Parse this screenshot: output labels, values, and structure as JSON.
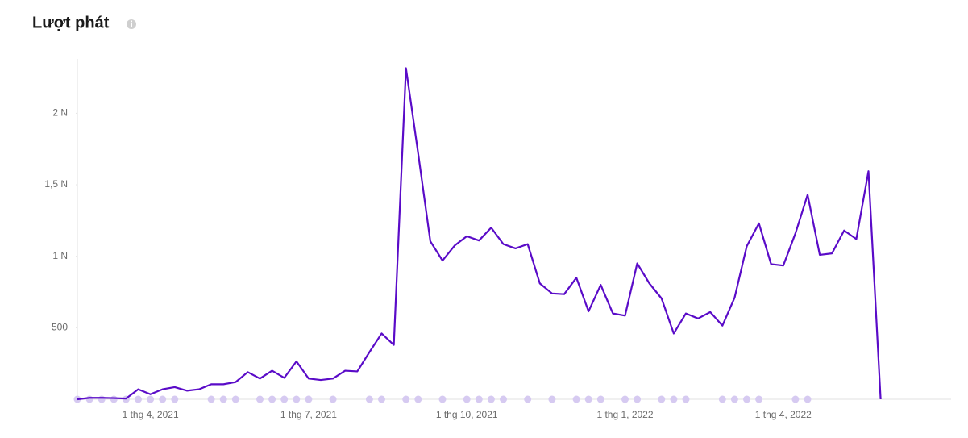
{
  "chart_data": {
    "type": "line",
    "title": "Lượt phát",
    "categories": [
      null,
      null,
      null,
      null,
      null,
      null,
      "1 thg 4, 2021",
      null,
      null,
      null,
      null,
      null,
      null,
      null,
      null,
      null,
      null,
      null,
      null,
      "1 thg 7, 2021",
      null,
      null,
      null,
      null,
      null,
      null,
      null,
      null,
      null,
      null,
      null,
      null,
      "1 thg 10, 2021",
      null,
      null,
      null,
      null,
      null,
      null,
      null,
      null,
      null,
      null,
      null,
      null,
      "1 thg 1, 2022",
      null,
      null,
      null,
      null,
      null,
      null,
      null,
      null,
      null,
      null,
      null,
      null,
      "1 thg 4, 2022",
      null,
      null,
      null,
      null,
      null,
      null,
      null,
      null
    ],
    "values": [
      0,
      10,
      10,
      8,
      5,
      70,
      35,
      70,
      85,
      60,
      70,
      105,
      105,
      120,
      190,
      145,
      200,
      150,
      265,
      145,
      135,
      145,
      200,
      195,
      330,
      460,
      380,
      2315,
      1720,
      1105,
      970,
      1075,
      1140,
      1110,
      1200,
      1085,
      1055,
      1085,
      810,
      740,
      735,
      850,
      615,
      800,
      600,
      585,
      950,
      810,
      705,
      460,
      600,
      565,
      610,
      515,
      710,
      1070,
      1230,
      945,
      935,
      1160,
      1430,
      1010,
      1020,
      1180,
      1120,
      1595,
      0
    ],
    "color": "#5a0bc8",
    "markers": [
      0,
      1,
      2,
      3,
      4,
      5,
      6,
      7,
      8,
      11,
      12,
      13,
      15,
      16,
      17,
      18,
      19,
      21,
      24,
      25,
      27,
      28,
      30,
      32,
      33,
      34,
      35,
      37,
      39,
      41,
      42,
      43,
      45,
      46,
      48,
      49,
      50,
      53,
      54,
      55,
      56,
      59,
      60
    ],
    "marker_color": "#d6caf1",
    "ylim": [
      0,
      2380
    ],
    "yticks": [
      500,
      {
        "value": 1000,
        "label": "1 N"
      },
      {
        "value": 1500,
        "label": "1,5 N"
      },
      {
        "value": 2000,
        "label": "2 N"
      }
    ]
  }
}
